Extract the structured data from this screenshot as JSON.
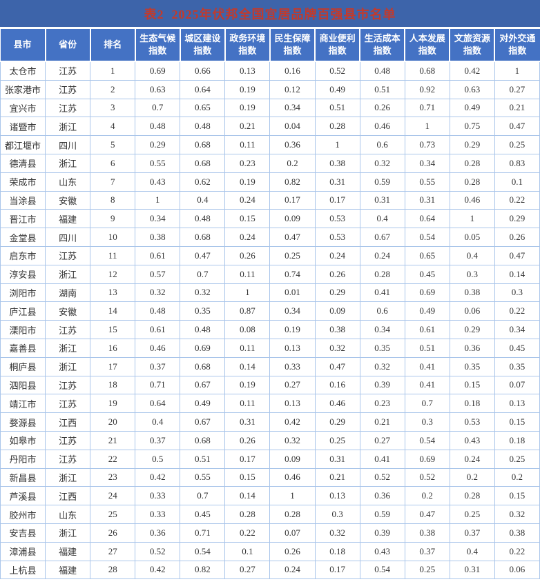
{
  "title": "表2  2025年伏邦全国宜居品牌百强县市名单",
  "colors": {
    "title_bg": "#3D64AA",
    "title_text": "#C23A2C",
    "header_bg": "#4472C4",
    "header_text": "#FFFFFF",
    "grid_border": "#A9C5EA",
    "body_text": "#333333"
  },
  "table": {
    "columns": [
      "县市",
      "省份",
      "排名",
      "生态气候\n指数",
      "城区建设\n指数",
      "政务环境\n指数",
      "民生保障\n指数",
      "商业便利\n指数",
      "生活成本\n指数",
      "人本发展\n指数",
      "文旅资源\n指数",
      "对外交通\n指数"
    ],
    "rows": [
      [
        "太仓市",
        "江苏",
        "1",
        "0.69",
        "0.66",
        "0.13",
        "0.16",
        "0.52",
        "0.48",
        "0.68",
        "0.42",
        "1"
      ],
      [
        "张家港市",
        "江苏",
        "2",
        "0.63",
        "0.64",
        "0.19",
        "0.12",
        "0.49",
        "0.51",
        "0.92",
        "0.63",
        "0.27"
      ],
      [
        "宜兴市",
        "江苏",
        "3",
        "0.7",
        "0.65",
        "0.19",
        "0.34",
        "0.51",
        "0.26",
        "0.71",
        "0.49",
        "0.21"
      ],
      [
        "诸暨市",
        "浙江",
        "4",
        "0.48",
        "0.48",
        "0.21",
        "0.04",
        "0.28",
        "0.46",
        "1",
        "0.75",
        "0.47"
      ],
      [
        "都江堰市",
        "四川",
        "5",
        "0.29",
        "0.68",
        "0.11",
        "0.36",
        "1",
        "0.6",
        "0.73",
        "0.29",
        "0.25"
      ],
      [
        "德清县",
        "浙江",
        "6",
        "0.55",
        "0.68",
        "0.23",
        "0.2",
        "0.38",
        "0.32",
        "0.34",
        "0.28",
        "0.83"
      ],
      [
        "荣成市",
        "山东",
        "7",
        "0.43",
        "0.62",
        "0.19",
        "0.82",
        "0.31",
        "0.59",
        "0.55",
        "0.28",
        "0.1"
      ],
      [
        "当涂县",
        "安徽",
        "8",
        "1",
        "0.4",
        "0.24",
        "0.17",
        "0.17",
        "0.31",
        "0.31",
        "0.46",
        "0.22"
      ],
      [
        "晋江市",
        "福建",
        "9",
        "0.34",
        "0.48",
        "0.15",
        "0.09",
        "0.53",
        "0.4",
        "0.64",
        "1",
        "0.29"
      ],
      [
        "金堂县",
        "四川",
        "10",
        "0.38",
        "0.68",
        "0.24",
        "0.47",
        "0.53",
        "0.67",
        "0.54",
        "0.05",
        "0.26"
      ],
      [
        "启东市",
        "江苏",
        "11",
        "0.61",
        "0.47",
        "0.26",
        "0.25",
        "0.24",
        "0.24",
        "0.65",
        "0.4",
        "0.47"
      ],
      [
        "淳安县",
        "浙江",
        "12",
        "0.57",
        "0.7",
        "0.11",
        "0.74",
        "0.26",
        "0.28",
        "0.45",
        "0.3",
        "0.14"
      ],
      [
        "浏阳市",
        "湖南",
        "13",
        "0.32",
        "0.32",
        "1",
        "0.01",
        "0.29",
        "0.41",
        "0.69",
        "0.38",
        "0.3"
      ],
      [
        "庐江县",
        "安徽",
        "14",
        "0.48",
        "0.35",
        "0.87",
        "0.34",
        "0.09",
        "0.6",
        "0.49",
        "0.06",
        "0.22"
      ],
      [
        "溧阳市",
        "江苏",
        "15",
        "0.61",
        "0.48",
        "0.08",
        "0.19",
        "0.38",
        "0.34",
        "0.61",
        "0.29",
        "0.34"
      ],
      [
        "嘉善县",
        "浙江",
        "16",
        "0.46",
        "0.69",
        "0.11",
        "0.13",
        "0.32",
        "0.35",
        "0.51",
        "0.36",
        "0.45"
      ],
      [
        "桐庐县",
        "浙江",
        "17",
        "0.37",
        "0.68",
        "0.14",
        "0.33",
        "0.47",
        "0.32",
        "0.41",
        "0.35",
        "0.35"
      ],
      [
        "泗阳县",
        "江苏",
        "18",
        "0.71",
        "0.67",
        "0.19",
        "0.27",
        "0.16",
        "0.39",
        "0.41",
        "0.15",
        "0.07"
      ],
      [
        "靖江市",
        "江苏",
        "19",
        "0.64",
        "0.49",
        "0.11",
        "0.13",
        "0.46",
        "0.23",
        "0.7",
        "0.18",
        "0.13"
      ],
      [
        "婺源县",
        "江西",
        "20",
        "0.4",
        "0.67",
        "0.31",
        "0.42",
        "0.29",
        "0.21",
        "0.3",
        "0.53",
        "0.15"
      ],
      [
        "如皋市",
        "江苏",
        "21",
        "0.37",
        "0.68",
        "0.26",
        "0.32",
        "0.25",
        "0.27",
        "0.54",
        "0.43",
        "0.18"
      ],
      [
        "丹阳市",
        "江苏",
        "22",
        "0.5",
        "0.51",
        "0.17",
        "0.09",
        "0.31",
        "0.41",
        "0.69",
        "0.24",
        "0.25"
      ],
      [
        "新昌县",
        "浙江",
        "23",
        "0.42",
        "0.55",
        "0.15",
        "0.46",
        "0.21",
        "0.52",
        "0.52",
        "0.2",
        "0.2"
      ],
      [
        "芦溪县",
        "江西",
        "24",
        "0.33",
        "0.7",
        "0.14",
        "1",
        "0.13",
        "0.36",
        "0.2",
        "0.28",
        "0.15"
      ],
      [
        "胶州市",
        "山东",
        "25",
        "0.33",
        "0.45",
        "0.28",
        "0.28",
        "0.3",
        "0.59",
        "0.47",
        "0.25",
        "0.32"
      ],
      [
        "安吉县",
        "浙江",
        "26",
        "0.36",
        "0.71",
        "0.22",
        "0.07",
        "0.32",
        "0.39",
        "0.38",
        "0.37",
        "0.38"
      ],
      [
        "漳浦县",
        "福建",
        "27",
        "0.52",
        "0.54",
        "0.1",
        "0.26",
        "0.18",
        "0.43",
        "0.37",
        "0.4",
        "0.22"
      ],
      [
        "上杭县",
        "福建",
        "28",
        "0.42",
        "0.82",
        "0.27",
        "0.24",
        "0.17",
        "0.54",
        "0.25",
        "0.31",
        "0.06"
      ]
    ]
  }
}
